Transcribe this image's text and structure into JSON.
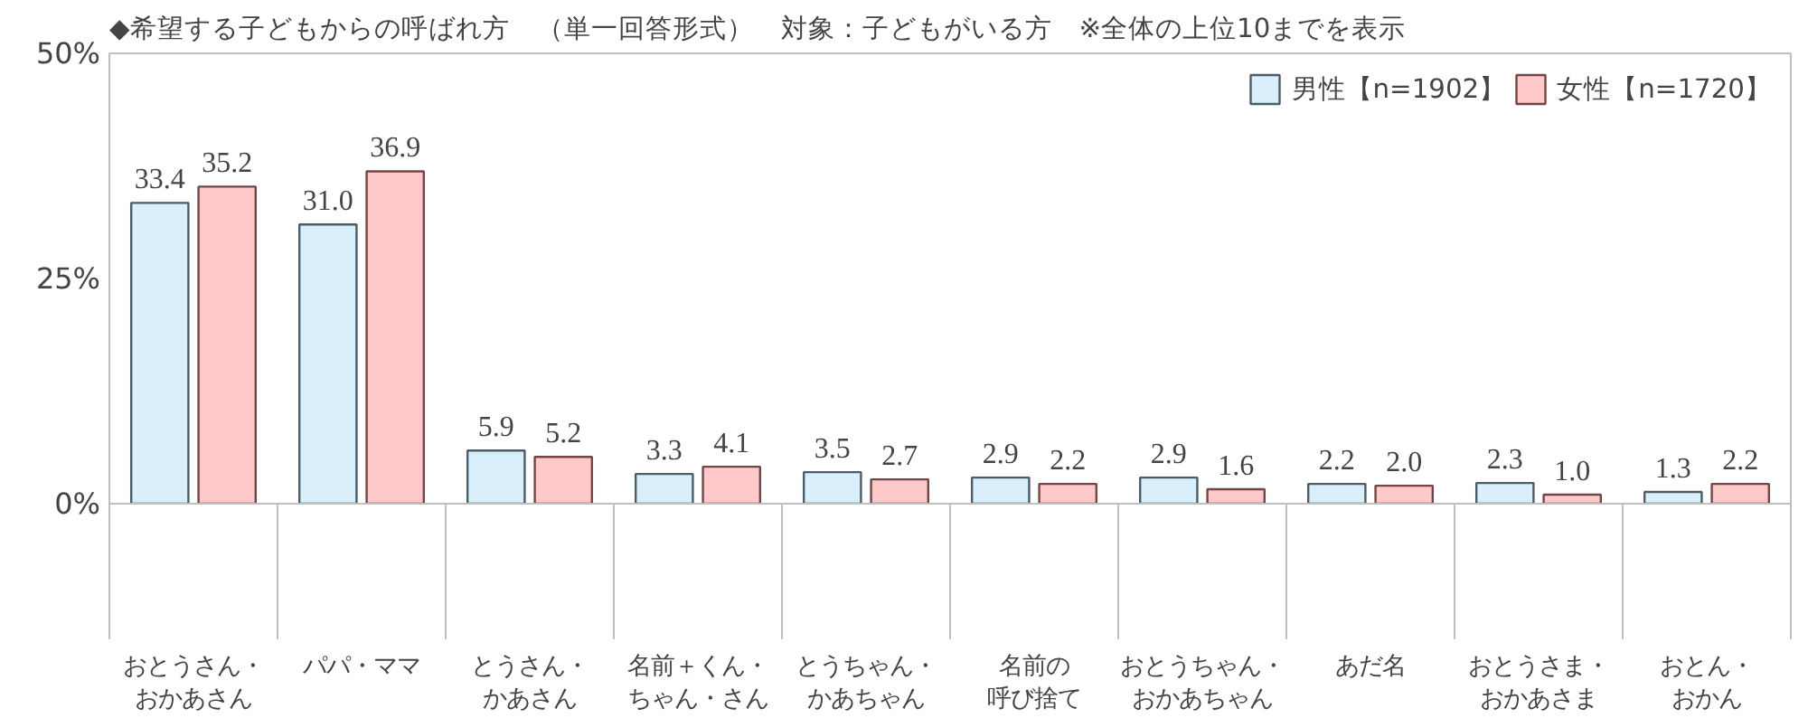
{
  "chart_data": {
    "type": "bar",
    "title": "◆希望する子どもからの呼ばれ方　（単一回答形式）　対象：子どもがいる方　※全体の上位10までを表示",
    "categories": [
      "おとうさん・おかあさん",
      "パパ・ママ",
      "とうさん・かあさん",
      "名前＋くん・ちゃん・さん",
      "とうちゃん・かあちゃん",
      "名前の呼び捨て",
      "おとうちゃん・おかあちゃん",
      "あだ名",
      "おとうさま・おかあさま",
      "おとん・おかん"
    ],
    "series": [
      {
        "name": "男性【n=1902】",
        "color": "#d9effc",
        "values": [
          33.4,
          31.0,
          5.9,
          3.3,
          3.5,
          2.9,
          2.9,
          2.2,
          2.3,
          1.3
        ],
        "value_labels": [
          "33.4",
          "31.0",
          "5.9",
          "3.3",
          "3.5",
          "2.9",
          "2.9",
          "2.2",
          "2.3",
          "1.3"
        ]
      },
      {
        "name": "女性【n=1720】",
        "color": "#ffc9c9",
        "values": [
          35.2,
          36.9,
          5.2,
          4.1,
          2.7,
          2.2,
          1.6,
          2.0,
          1.0,
          2.2
        ],
        "value_labels": [
          "35.2",
          "36.9",
          "5.2",
          "4.1",
          "2.7",
          "2.2",
          "1.6",
          "2.0",
          "1.0",
          "2.2"
        ]
      }
    ],
    "ylim": [
      0,
      50
    ],
    "yticks": [
      {
        "value": 0,
        "label": "0%"
      },
      {
        "value": 25,
        "label": "25%"
      },
      {
        "value": 50,
        "label": "50%"
      }
    ],
    "legend": "top right"
  }
}
